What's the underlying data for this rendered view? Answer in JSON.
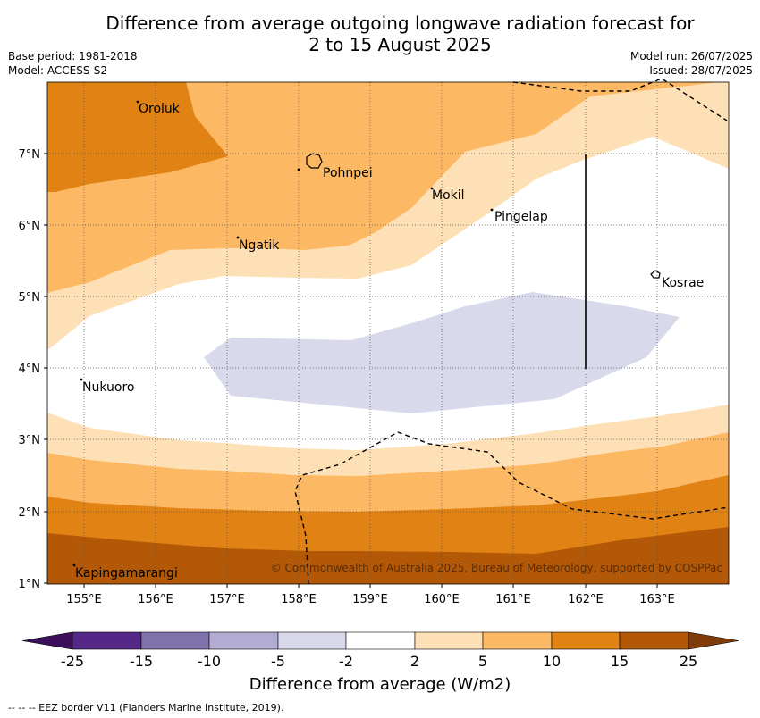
{
  "header": {
    "title_line1": "Difference from average outgoing longwave radiation forecast for",
    "title_line2": "2 to 15 August 2025",
    "base_period": "Base period: 1981-2018",
    "model": "Model: ACCESS-S2",
    "model_run": "Model run: 26/07/2025",
    "issued": "Issued: 28/07/2025"
  },
  "map": {
    "lon_ticks": [
      "155°E",
      "156°E",
      "157°E",
      "158°E",
      "159°E",
      "160°E",
      "161°E",
      "162°E",
      "163°E"
    ],
    "lat_ticks": [
      "7°N",
      "6°N",
      "5°N",
      "4°N",
      "3°N",
      "2°N",
      "1°N"
    ],
    "places": [
      "Oroluk",
      "Pohnpei",
      "Mokil",
      "Pingelap",
      "Ngatik",
      "Kosrae",
      "Nukuoro",
      "Kapingamarangi"
    ],
    "copyright": "© Commonwealth of Australia 2025, Bureau of Meteorology, supported by COSPPac"
  },
  "colorbar": {
    "ticks": [
      "-25",
      "-15",
      "-10",
      "-5",
      "-2",
      "2",
      "5",
      "10",
      "15",
      "25"
    ],
    "colors": [
      "#3b0f5a",
      "#542788",
      "#8073ac",
      "#b2abd2",
      "#d8daeb",
      "#ffffff",
      "#fee0b6",
      "#fdb863",
      "#e08214",
      "#b35806",
      "#7f3b08"
    ],
    "label": "Difference from average (W/m2)"
  },
  "footer": {
    "legend": "--  --  -- EEZ border V11 (Flanders Marine Institute, 2019)."
  }
}
